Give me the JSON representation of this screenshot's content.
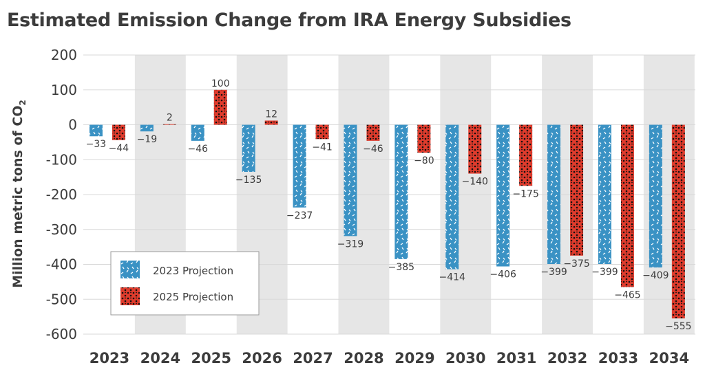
{
  "chart_data": {
    "type": "bar",
    "title": "Estimated Emission Change from IRA Energy Subsidies",
    "ylabel": "Million metric tons of CO",
    "ylabel_subscript": "2",
    "ylim": [
      -600,
      200
    ],
    "yticks": [
      200,
      100,
      0,
      -100,
      -200,
      -300,
      -400,
      -500,
      -600
    ],
    "ytick_labels": [
      "200",
      "100",
      "0",
      "-100",
      "-200",
      "-300",
      "-400",
      "-500",
      "-600"
    ],
    "grid": true,
    "alternating_column_shading": true,
    "legend_position": "bottom-left",
    "categories": [
      "2023",
      "2024",
      "2025",
      "2026",
      "2027",
      "2028",
      "2029",
      "2030",
      "2031",
      "2032",
      "2033",
      "2034"
    ],
    "series": [
      {
        "name": "2023 Projection",
        "color": "#3a92c4",
        "pattern": "white-dashes",
        "values": [
          -33,
          -19,
          -46,
          -135,
          -237,
          -319,
          -385,
          -414,
          -406,
          -399,
          -399,
          -409
        ],
        "labels": [
          "−33",
          "−19",
          "−46",
          "−135",
          "−237",
          "−319",
          "−385",
          "−414",
          "−406",
          "−399",
          "−399",
          "−409"
        ]
      },
      {
        "name": "2025 Projection",
        "color": "#e03c2d",
        "pattern": "black-dots",
        "values": [
          -44,
          2,
          100,
          12,
          -41,
          -46,
          -80,
          -140,
          -175,
          -375,
          -465,
          -555
        ],
        "labels": [
          "−44",
          "2",
          "100",
          "12",
          "−41",
          "−46",
          "−80",
          "−140",
          "−175",
          "−375",
          "−465",
          "−555"
        ]
      }
    ]
  }
}
